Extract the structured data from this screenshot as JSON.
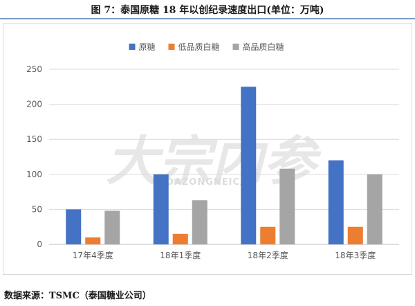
{
  "title": "图 7：泰国原糖 18 年以创纪录速度出口(单位：万吨)",
  "source": "数据来源：TSMC（泰国糖业公司）",
  "watermark": {
    "main": "大宗内参",
    "sub": "DAZONGNEICAN"
  },
  "colors": {
    "title_rule": "#7a9cc6"
  },
  "chart_data": {
    "type": "bar",
    "title": "",
    "xlabel": "",
    "ylabel": "",
    "categories": [
      "17年4季度",
      "18年1季度",
      "18年2季度",
      "18年3季度"
    ],
    "series": [
      {
        "name": "原糖",
        "color": "#4472c4",
        "values": [
          50,
          100,
          225,
          120
        ]
      },
      {
        "name": "低品质白糖",
        "color": "#ed7d31",
        "values": [
          10,
          15,
          25,
          25
        ]
      },
      {
        "name": "高品质白糖",
        "color": "#a5a5a5",
        "values": [
          48,
          63,
          108,
          100
        ]
      }
    ],
    "ylim": [
      0,
      250
    ],
    "yticks": [
      0,
      50,
      100,
      150,
      200,
      250
    ],
    "grid": true,
    "legend": "top-center"
  }
}
